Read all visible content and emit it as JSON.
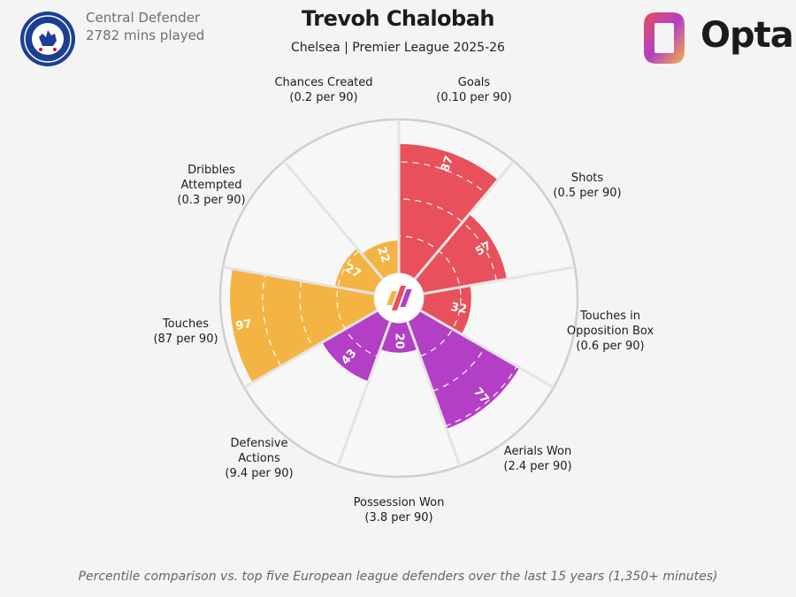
{
  "header": {
    "role": "Central Defender",
    "minutes": "2782 mins played",
    "title": "Trevoh Chalobah",
    "subtitle": "Chelsea | Premier League 2025-26"
  },
  "brand": {
    "name": "Opta"
  },
  "footnote": "Percentile comparison vs. top five European league defenders over the last 15 years (1,350+ minutes)",
  "colors": {
    "attack": "#e8505b",
    "defense": "#b23fc5",
    "possession": "#f4b443",
    "background": "#f4f4f4",
    "grid": "#d6d6d6"
  },
  "chart_data": {
    "type": "polar-bar",
    "scale": [
      0,
      100
    ],
    "categories": [
      {
        "name": "Goals",
        "per90": "(0.10 per 90)",
        "value": 87,
        "group": "attack"
      },
      {
        "name": "Shots",
        "per90": "(0.5 per 90)",
        "value": 57,
        "group": "attack"
      },
      {
        "name": "Touches in Opposition Box",
        "per90": "(0.6 per 90)",
        "value": 32,
        "group": "attack"
      },
      {
        "name": "Aerials Won",
        "per90": "(2.4 per 90)",
        "value": 77,
        "group": "defense"
      },
      {
        "name": "Possession Won",
        "per90": "(3.8 per 90)",
        "value": 20,
        "group": "defense"
      },
      {
        "name": "Defensive Actions",
        "per90": "(9.4 per 90)",
        "value": 43,
        "group": "defense"
      },
      {
        "name": "Touches",
        "per90": "(87 per 90)",
        "value": 97,
        "group": "possession"
      },
      {
        "name": "Dribbles Attempted",
        "per90": "(0.3 per 90)",
        "value": 27,
        "group": "possession"
      },
      {
        "name": "Chances Created",
        "per90": "(0.2 per 90)",
        "value": 22,
        "group": "possession"
      }
    ]
  }
}
